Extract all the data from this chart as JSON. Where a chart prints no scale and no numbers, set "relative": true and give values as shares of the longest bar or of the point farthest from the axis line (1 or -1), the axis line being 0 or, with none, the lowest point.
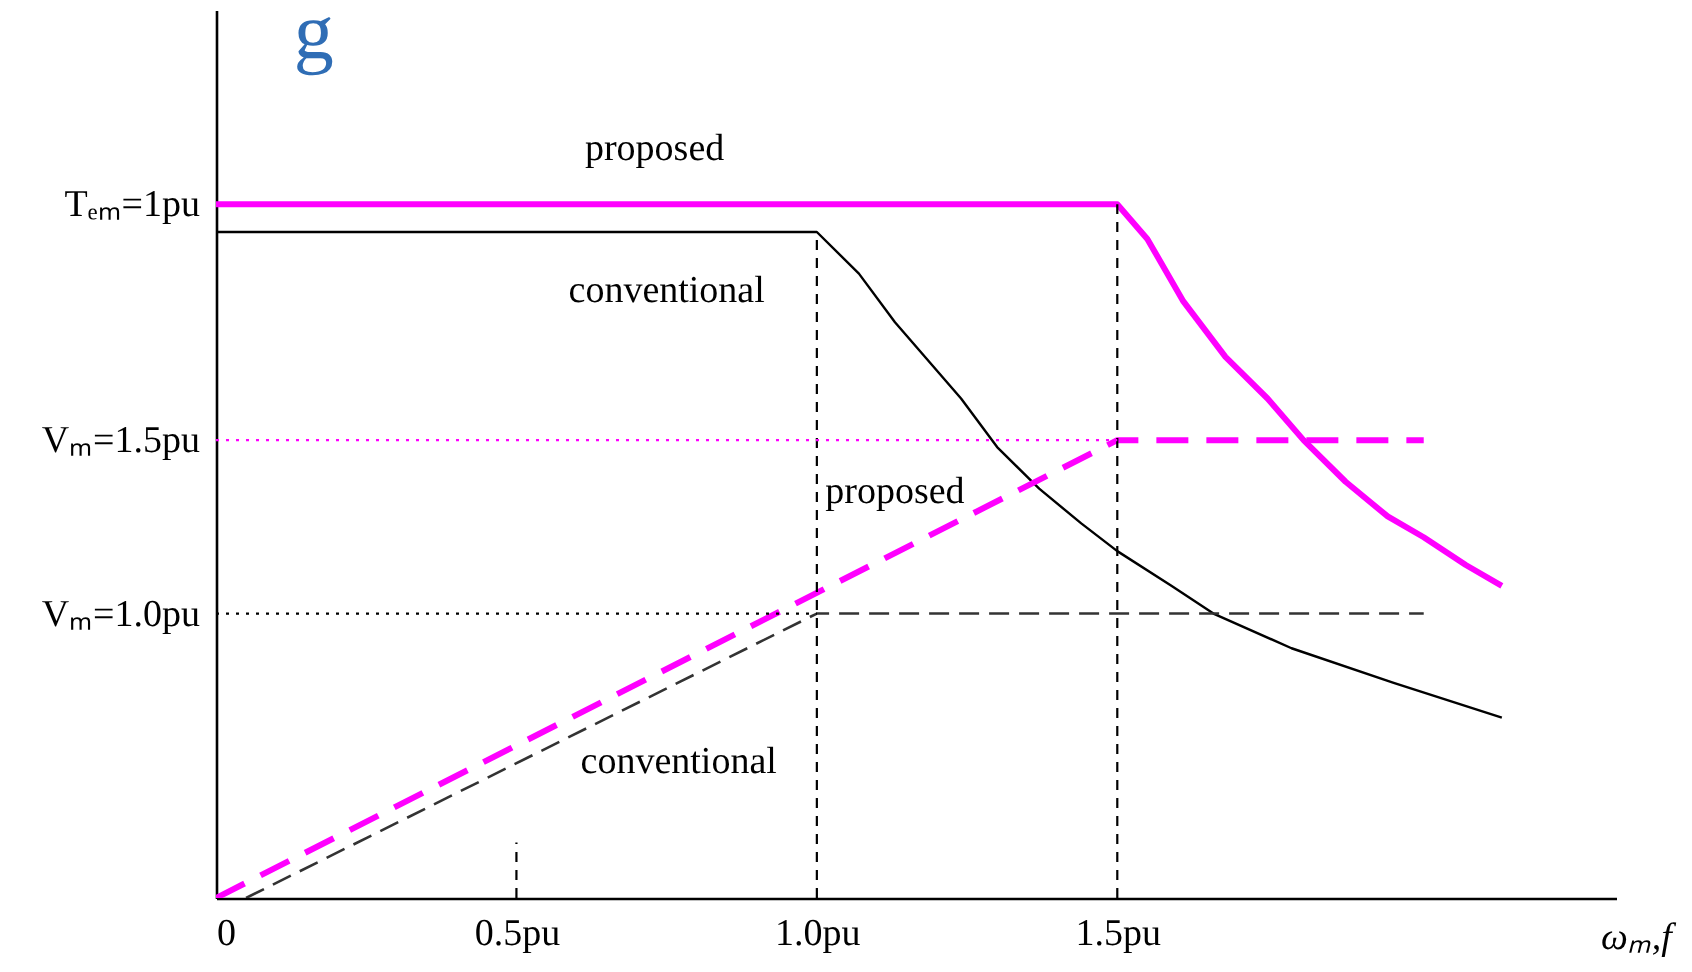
{
  "chart_data": {
    "type": "line",
    "title": "g",
    "xlabel": "ωₘ,f",
    "relative": true,
    "xlim": [
      0,
      2.33
    ],
    "xticks": [
      0,
      {
        "value": 0.5,
        "label": "0.5pu"
      },
      {
        "value": 1.0,
        "label": "1.0pu"
      },
      {
        "value": 1.5,
        "label": "1.5pu"
      }
    ],
    "grid": false,
    "series": [
      {
        "color": "#ff00ff",
        "line_style": "solid",
        "x": [
          0,
          1.5,
          1.55,
          1.61,
          1.68,
          1.75,
          1.81,
          1.88,
          1.95,
          2.01,
          2.08,
          2.14
        ],
        "values": [
          1,
          1,
          0.95,
          0.86,
          0.78,
          0.72,
          0.66,
          0.6,
          0.55,
          0.52,
          0.48,
          0.45
        ]
      },
      {
        "color": "#000000",
        "line_style": "solid",
        "x": [
          0,
          1.0,
          1.07,
          1.13,
          1.24,
          1.3,
          1.37,
          1.44,
          1.5,
          1.59,
          1.66,
          1.79,
          1.96,
          2.14
        ],
        "values": [
          0.96,
          0.96,
          0.9,
          0.83,
          0.72,
          0.65,
          0.59,
          0.54,
          0.5,
          0.45,
          0.41,
          0.36,
          0.31,
          0.26
        ]
      },
      {
        "color": "#ff00ff",
        "line_style": "dashed",
        "x": [
          0,
          1.5,
          2.01
        ],
        "values": [
          0,
          0.66,
          0.66
        ]
      },
      {
        "color": "#333333",
        "line_style": "dashed",
        "x": [
          0.05,
          1.0,
          2.01
        ],
        "values": [
          0,
          0.41,
          0.41
        ]
      },
      {
        "color": "#000000",
        "line_style": "dashed",
        "x": [
          0.5,
          0.5
        ],
        "values": [
          0,
          0.08
        ]
      },
      {
        "color": "#000000",
        "line_style": "dashed",
        "x": [
          1.0,
          1.0
        ],
        "values": [
          0,
          0.96
        ]
      },
      {
        "color": "#000000",
        "line_style": "dashed",
        "x": [
          1.5,
          1.5
        ],
        "values": [
          0,
          1
        ]
      },
      {
        "color": "#ff00ff",
        "line_style": "dotted",
        "x": [
          0,
          1.5
        ],
        "values": [
          0.66,
          0.66
        ]
      },
      {
        "color": "#000000",
        "line_style": "dotted",
        "x": [
          0,
          1.0
        ],
        "values": [
          0.41,
          0.41
        ]
      }
    ],
    "annotations": [
      {
        "text": "Tₑₘ=1pu",
        "x": 0,
        "y": 1
      },
      {
        "text": "Vₘ=1.5pu",
        "x": 0,
        "y": 0.66
      },
      {
        "text": "Vₘ=1.0pu",
        "x": 0,
        "y": 0.41
      },
      {
        "text": "proposed",
        "x": 0.73,
        "y": 1
      },
      {
        "text": "conventional",
        "x": 0.75,
        "y": 0.96
      },
      {
        "text": "proposed",
        "x": 1.13,
        "y": 0.5
      },
      {
        "text": "conventional",
        "x": 0.77,
        "y": 0.31
      }
    ]
  }
}
